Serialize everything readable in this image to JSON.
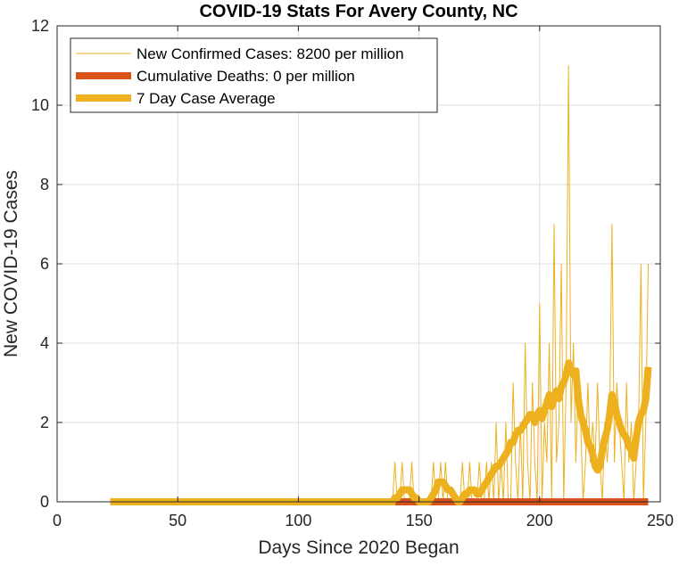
{
  "chart_data": {
    "type": "line",
    "title": "COVID-19 Stats For Avery County, NC",
    "xlabel": "Days Since 2020 Began",
    "ylabel": "New COVID-19 Cases",
    "xlim": [
      0,
      250
    ],
    "ylim": [
      0,
      12
    ],
    "xticks": [
      0,
      50,
      100,
      150,
      200,
      250
    ],
    "yticks": [
      0,
      2,
      4,
      6,
      8,
      10,
      12
    ],
    "grid": true,
    "legend_position": "top-left",
    "series": [
      {
        "name": "New Confirmed Cases: 8200 per million",
        "color": "#EDB120",
        "style": "thin",
        "x": [
          22,
          30,
          40,
          50,
          60,
          70,
          80,
          90,
          100,
          110,
          120,
          130,
          139,
          140,
          141,
          142,
          143,
          144,
          145,
          146,
          147,
          148,
          149,
          150,
          151,
          152,
          153,
          154,
          155,
          156,
          157,
          158,
          159,
          160,
          161,
          162,
          163,
          164,
          165,
          166,
          167,
          168,
          169,
          170,
          171,
          172,
          173,
          174,
          175,
          176,
          177,
          178,
          179,
          180,
          181,
          182,
          183,
          184,
          185,
          186,
          187,
          188,
          189,
          190,
          191,
          192,
          193,
          194,
          195,
          196,
          197,
          198,
          199,
          200,
          201,
          202,
          203,
          204,
          205,
          206,
          207,
          208,
          209,
          210,
          211,
          212,
          213,
          214,
          215,
          216,
          217,
          218,
          219,
          220,
          221,
          222,
          223,
          224,
          225,
          226,
          227,
          228,
          229,
          230,
          231,
          232,
          233,
          234,
          235,
          236,
          237,
          238,
          239,
          240,
          241,
          242,
          243,
          244,
          245
        ],
        "y": [
          0,
          0,
          0,
          0,
          0,
          0,
          0,
          0,
          0,
          0,
          0,
          0,
          0,
          1,
          0,
          0,
          1,
          0,
          0,
          0,
          1,
          0,
          0,
          0,
          0,
          0,
          0,
          0,
          0,
          1,
          0,
          0,
          1,
          0,
          1,
          0,
          0,
          0,
          0,
          0,
          0,
          1,
          0,
          0,
          1,
          0,
          0,
          0,
          1,
          0,
          0,
          1,
          0,
          1,
          0,
          2,
          0,
          1,
          0,
          2,
          0,
          0,
          3,
          1,
          0,
          2,
          0,
          4,
          1,
          0,
          3,
          1,
          0,
          5,
          0,
          2,
          1,
          4,
          0,
          7,
          1,
          2,
          6,
          0,
          3,
          11,
          2,
          4,
          1,
          3,
          2,
          0,
          1,
          3,
          1,
          2,
          1,
          3,
          1,
          0,
          2,
          1,
          2,
          7,
          1,
          3,
          2,
          1,
          0,
          3,
          1,
          2,
          0,
          1,
          2,
          6,
          0,
          2,
          6
        ]
      },
      {
        "name": "Cumulative Deaths: 0 per million",
        "color": "#D95319",
        "style": "thick",
        "x": [
          140,
          245
        ],
        "y": [
          0,
          0
        ]
      },
      {
        "name": "7 Day Case Average",
        "color": "#EDB120",
        "style": "thick",
        "x": [
          22,
          30,
          40,
          50,
          60,
          70,
          80,
          90,
          100,
          110,
          120,
          130,
          139,
          140,
          141,
          142,
          143,
          144,
          145,
          146,
          147,
          148,
          149,
          150,
          151,
          152,
          153,
          154,
          155,
          156,
          157,
          158,
          159,
          160,
          161,
          162,
          163,
          164,
          165,
          166,
          167,
          168,
          169,
          170,
          171,
          172,
          173,
          174,
          175,
          176,
          177,
          178,
          179,
          180,
          181,
          182,
          183,
          184,
          185,
          186,
          187,
          188,
          189,
          190,
          191,
          192,
          193,
          194,
          195,
          196,
          197,
          198,
          199,
          200,
          201,
          202,
          203,
          204,
          205,
          206,
          207,
          208,
          209,
          210,
          211,
          212,
          213,
          214,
          215,
          216,
          217,
          218,
          219,
          220,
          221,
          222,
          223,
          224,
          225,
          226,
          227,
          228,
          229,
          230,
          231,
          232,
          233,
          234,
          235,
          236,
          237,
          238,
          239,
          240,
          241,
          242,
          243,
          244,
          245
        ],
        "y": [
          0,
          0,
          0,
          0,
          0,
          0,
          0,
          0,
          0,
          0,
          0,
          0,
          0,
          0.1,
          0.1,
          0.2,
          0.3,
          0.3,
          0.3,
          0.3,
          0.2,
          0.1,
          0.1,
          0,
          0,
          0,
          0,
          0,
          0.1,
          0.2,
          0.3,
          0.5,
          0.5,
          0.5,
          0.4,
          0.3,
          0.3,
          0.2,
          0.1,
          0,
          0,
          0.1,
          0.2,
          0.2,
          0.3,
          0.3,
          0.3,
          0.2,
          0.2,
          0.3,
          0.4,
          0.5,
          0.6,
          0.7,
          0.8,
          0.9,
          0.9,
          1.0,
          1.1,
          1.2,
          1.3,
          1.5,
          1.5,
          1.7,
          1.8,
          1.8,
          1.9,
          2.0,
          2.1,
          2.2,
          2.2,
          2.0,
          2.2,
          2.3,
          2.1,
          2.3,
          2.5,
          2.7,
          2.4,
          2.6,
          2.8,
          2.6,
          2.9,
          3.0,
          3.2,
          3.5,
          3.3,
          3.2,
          3.3,
          2.6,
          2.2,
          2.0,
          1.8,
          1.5,
          1.4,
          1.2,
          0.9,
          0.8,
          0.9,
          1.3,
          1.6,
          1.8,
          2.2,
          2.7,
          2.5,
          2.2,
          2.0,
          1.8,
          1.7,
          1.6,
          1.4,
          1.3,
          1.1,
          1.6,
          2.0,
          2.2,
          2.3,
          2.6,
          3.4
        ]
      }
    ]
  }
}
